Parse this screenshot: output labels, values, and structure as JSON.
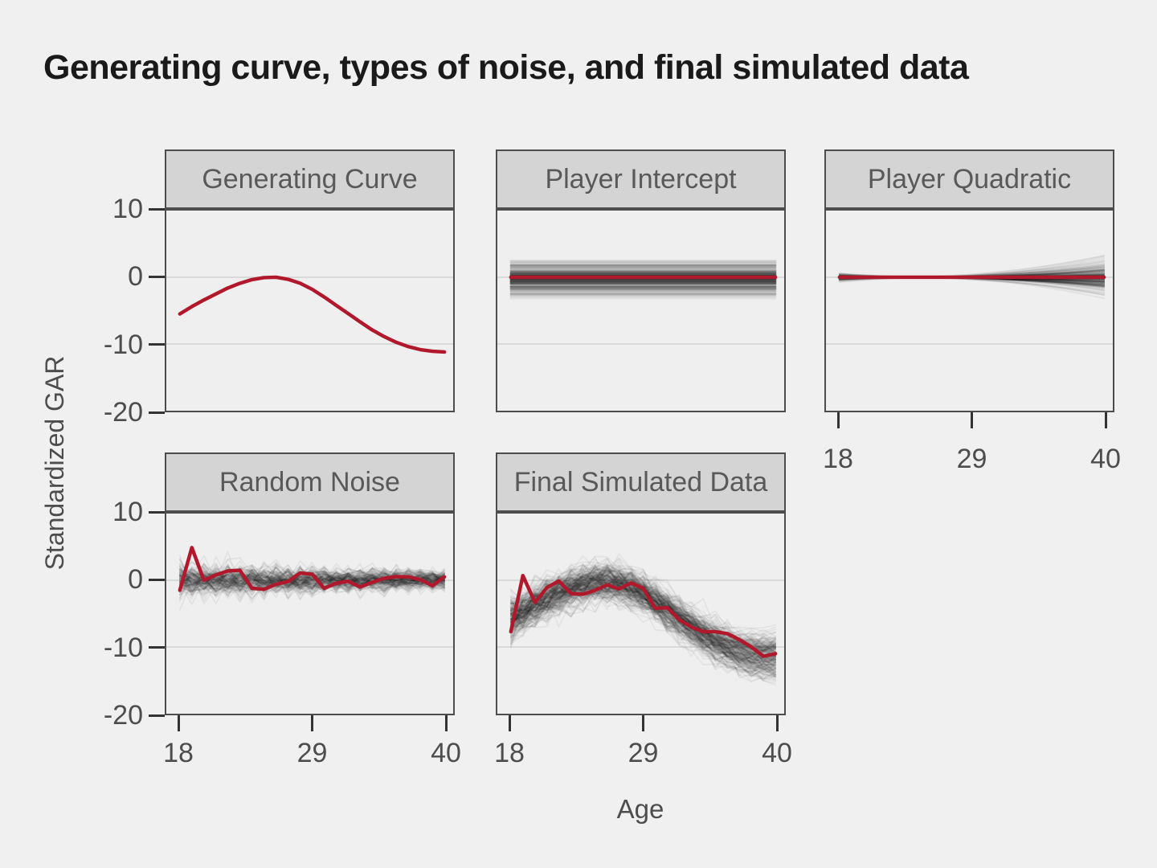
{
  "title": "Generating curve, types of noise, and final simulated data",
  "axes": {
    "x_label": "Age",
    "y_label": "Standardized GAR",
    "x_ticks": [
      18,
      29,
      40
    ],
    "y_ticks": [
      10,
      0,
      -10,
      -20
    ],
    "x_range": [
      18,
      40
    ],
    "y_range": [
      -20,
      10
    ],
    "gridlines": [
      0,
      -10
    ]
  },
  "colors": {
    "background": "#f0f0f0",
    "panel_background": "#efefef",
    "strip_background": "#d4d4d4",
    "border": "#4d4d4d",
    "gridline": "#d9d9d9",
    "tick": "#333333",
    "axis_text": "#4d4d4d",
    "strip_text": "#595959",
    "red_line": "#b2182b",
    "ensemble_line": "#1a1a1a",
    "title_text": "#1a1a1a"
  },
  "chart_data": {
    "type": "line",
    "x": [
      18,
      19,
      20,
      21,
      22,
      23,
      24,
      25,
      26,
      27,
      28,
      29,
      30,
      31,
      32,
      33,
      34,
      35,
      36,
      37,
      38,
      39,
      40
    ],
    "xlabel": "Age",
    "ylabel": "Standardized GAR",
    "ylim": [
      -20,
      10
    ],
    "xlim": [
      18,
      40
    ],
    "legend": "none",
    "grid": "horizontal-major-only",
    "panels": [
      {
        "label": "Generating Curve",
        "red_series": [
          -5.5,
          -4.4,
          -3.4,
          -2.5,
          -1.6,
          -0.9,
          -0.35,
          -0.05,
          0,
          -0.3,
          -0.9,
          -1.8,
          -2.95,
          -4.2,
          -5.45,
          -6.7,
          -7.9,
          -8.9,
          -9.75,
          -10.4,
          -10.85,
          -11.1,
          -11.2
        ],
        "ensemble": null
      },
      {
        "label": "Player Intercept",
        "red_constant": 0,
        "ensemble": {
          "kind": "intercept",
          "n": 200,
          "mean": -0.2,
          "sd": 1.1
        }
      },
      {
        "label": "Player Quadratic",
        "red_constant": 0,
        "ensemble": {
          "kind": "quadratic",
          "n": 200,
          "coef_sd": 0.005,
          "vertex_min": 22,
          "vertex_max": 27
        }
      },
      {
        "label": "Random Noise",
        "red_series": [
          -1.5,
          4.9,
          0,
          0.8,
          1.4,
          1.5,
          -1.2,
          -1.35,
          -0.6,
          -0.2,
          1.1,
          0.9,
          -1.2,
          -0.45,
          -0.15,
          -1,
          -0.3,
          0.3,
          0.55,
          0.5,
          0.1,
          -0.8,
          0.5
        ],
        "ensemble": {
          "kind": "noise",
          "n": 150,
          "sd_start": 1.2,
          "sd_end": 0.75
        }
      },
      {
        "label": "Final Simulated Data",
        "red_series": [
          -7.7,
          0.7,
          -3.3,
          -1.1,
          -0.1,
          -2,
          -2.1,
          -1.5,
          -0.7,
          -1.3,
          -0.4,
          -1.2,
          -4.2,
          -4.1,
          -5.9,
          -7,
          -7.7,
          -7.7,
          -8,
          -8.9,
          -10,
          -11.4,
          -11
        ],
        "ensemble": {
          "kind": "final",
          "n": 250,
          "intercept_mean": -0.2,
          "intercept_sd": 1.1,
          "coef_sd": 0.005,
          "vertex_min": 22,
          "vertex_max": 27,
          "noise_sd_start": 1.2,
          "noise_sd_end": 0.75
        }
      }
    ]
  }
}
